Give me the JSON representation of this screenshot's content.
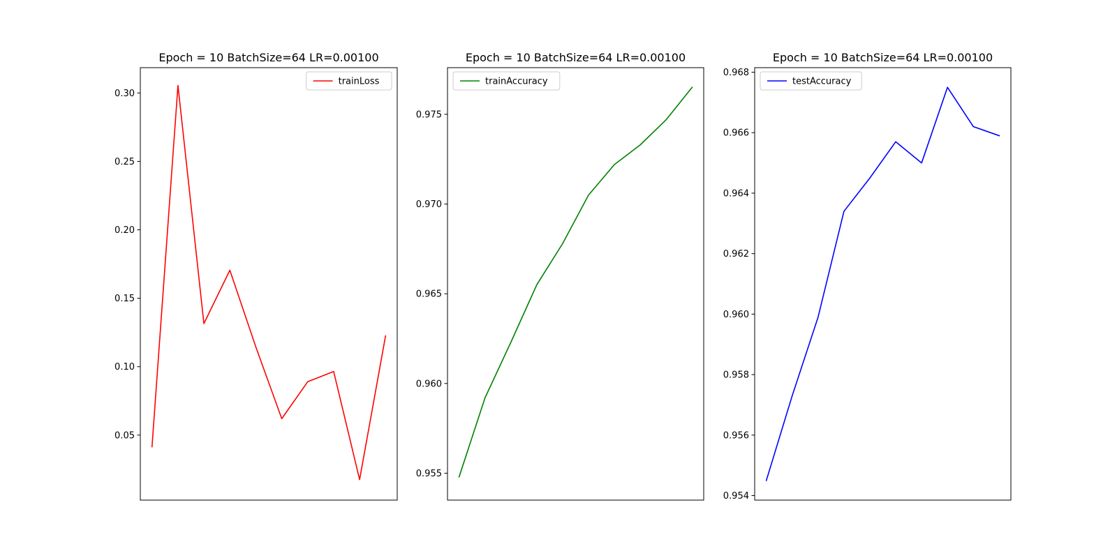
{
  "chart_data": [
    {
      "type": "line",
      "title": "Epoch = 10 BatchSize=64 LR=0.00100",
      "xlabel": "",
      "ylabel": "",
      "x": [
        1,
        2,
        3,
        4,
        5,
        6,
        7,
        8,
        9,
        10
      ],
      "series": [
        {
          "name": "trainLoss",
          "color": "#ff0000",
          "values": [
            0.0415,
            0.3055,
            0.1315,
            0.1705,
            0.1145,
            0.062,
            0.089,
            0.0965,
            0.0175,
            0.1225
          ]
        }
      ],
      "ylim": [
        0.0025,
        0.3185
      ],
      "yticks": [
        {
          "value": 0.05,
          "label": "0.05"
        },
        {
          "value": 0.1,
          "label": "0.10"
        },
        {
          "value": 0.15,
          "label": "0.15"
        },
        {
          "value": 0.2,
          "label": "0.20"
        },
        {
          "value": 0.25,
          "label": "0.25"
        },
        {
          "value": 0.3,
          "label": "0.30"
        }
      ],
      "grid": false,
      "legend": "upper right"
    },
    {
      "type": "line",
      "title": "Epoch = 10 BatchSize=64 LR=0.00100",
      "xlabel": "",
      "ylabel": "",
      "x": [
        1,
        2,
        3,
        4,
        5,
        6,
        7,
        8,
        9,
        10
      ],
      "series": [
        {
          "name": "trainAccuracy",
          "color": "#008000",
          "values": [
            0.9548,
            0.9592,
            0.9623,
            0.9655,
            0.9678,
            0.9705,
            0.9722,
            0.9733,
            0.9747,
            0.9765
          ]
        }
      ],
      "ylim": [
        0.9535,
        0.9776
      ],
      "yticks": [
        {
          "value": 0.955,
          "label": "0.955"
        },
        {
          "value": 0.96,
          "label": "0.960"
        },
        {
          "value": 0.965,
          "label": "0.965"
        },
        {
          "value": 0.97,
          "label": "0.970"
        },
        {
          "value": 0.975,
          "label": "0.975"
        }
      ],
      "grid": false,
      "legend": "upper left"
    },
    {
      "type": "line",
      "title": "Epoch = 10 BatchSize=64 LR=0.00100",
      "xlabel": "",
      "ylabel": "",
      "x": [
        1,
        2,
        3,
        4,
        5,
        6,
        7,
        8,
        9,
        10
      ],
      "series": [
        {
          "name": "testAccuracy",
          "color": "#0000ff",
          "values": [
            0.9545,
            0.9573,
            0.9599,
            0.9634,
            0.9645,
            0.9657,
            0.965,
            0.9675,
            0.9662,
            0.9659
          ]
        }
      ],
      "ylim": [
        0.95385,
        0.96815
      ],
      "yticks": [
        {
          "value": 0.954,
          "label": "0.954"
        },
        {
          "value": 0.956,
          "label": "0.956"
        },
        {
          "value": 0.958,
          "label": "0.958"
        },
        {
          "value": 0.96,
          "label": "0.960"
        },
        {
          "value": 0.962,
          "label": "0.962"
        },
        {
          "value": 0.964,
          "label": "0.964"
        },
        {
          "value": 0.966,
          "label": "0.966"
        },
        {
          "value": 0.968,
          "label": "0.968"
        }
      ],
      "grid": false,
      "legend": "upper left"
    }
  ]
}
